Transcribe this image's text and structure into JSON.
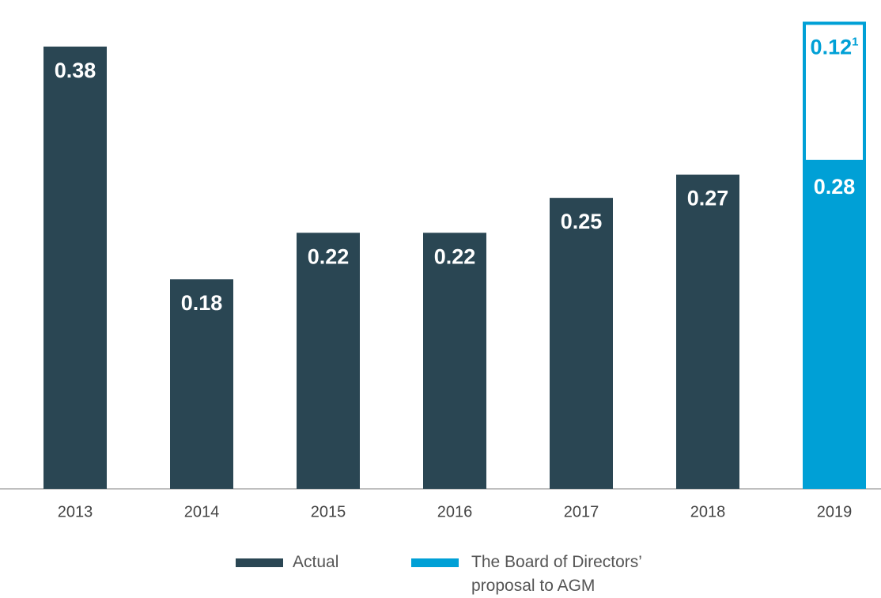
{
  "chart_data": {
    "type": "bar",
    "categories": [
      "2013",
      "2014",
      "2015",
      "2016",
      "2017",
      "2018",
      "2019"
    ],
    "series": [
      {
        "name": "Actual",
        "color": "#2a4653",
        "values": [
          0.38,
          0.18,
          0.22,
          0.22,
          0.25,
          0.27,
          null
        ]
      },
      {
        "name": "The Board of Directors’ proposal to AGM",
        "color": "#00a0d6",
        "values": [
          null,
          null,
          null,
          null,
          null,
          null,
          0.28
        ]
      },
      {
        "color": "#00a0d6",
        "outline": true,
        "values": [
          null,
          null,
          null,
          null,
          null,
          null,
          0.12
        ],
        "footnote_marker": "1"
      }
    ],
    "stacked": true,
    "ylim": [
      0,
      0.42
    ]
  }
}
